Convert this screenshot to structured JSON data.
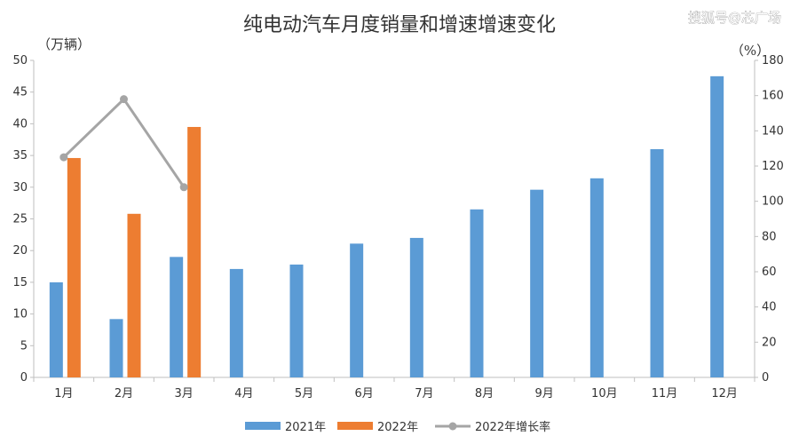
{
  "chart_data": {
    "type": "bar",
    "title": "纯电动汽车月度销量和增速增速变化",
    "watermark": "搜狐号@芯广场",
    "y_left_unit": "（万辆）",
    "y_right_unit": "（%）",
    "categories": [
      "1月",
      "2月",
      "3月",
      "4月",
      "5月",
      "6月",
      "7月",
      "8月",
      "9月",
      "10月",
      "11月",
      "12月"
    ],
    "y_left_lim": [
      0,
      50
    ],
    "y_left_ticks": [
      "0",
      "5",
      "10",
      "15",
      "20",
      "25",
      "30",
      "35",
      "40",
      "45",
      "50"
    ],
    "y_right_lim": [
      0,
      180
    ],
    "y_right_ticks": [
      "0",
      "20",
      "40",
      "60",
      "80",
      "100",
      "120",
      "140",
      "160",
      "180"
    ],
    "series": [
      {
        "name": "2021年",
        "type": "bar",
        "axis": "left",
        "color": "#5b9bd5",
        "values": [
          15.0,
          9.2,
          19.0,
          17.1,
          17.8,
          21.1,
          22.0,
          26.5,
          29.6,
          31.4,
          36.0,
          47.5
        ]
      },
      {
        "name": "2022年",
        "type": "bar",
        "axis": "left",
        "color": "#ed7d31",
        "values": [
          34.6,
          25.8,
          39.5,
          null,
          null,
          null,
          null,
          null,
          null,
          null,
          null,
          null
        ]
      },
      {
        "name": "2022年增长率",
        "type": "line",
        "axis": "right",
        "color": "#a5a5a5",
        "values": [
          125,
          158,
          108,
          null,
          null,
          null,
          null,
          null,
          null,
          null,
          null,
          null
        ]
      }
    ],
    "grid": false,
    "legend_position": "bottom"
  }
}
